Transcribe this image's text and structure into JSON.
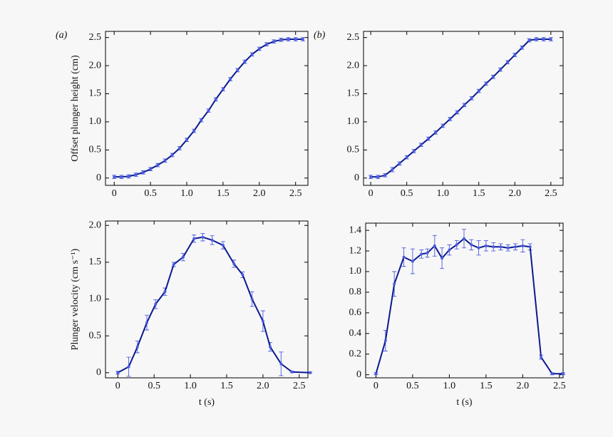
{
  "chart_data": [
    {
      "type": "line",
      "panel_label": "(a)",
      "ylabel": "Offset plunger height (cm)",
      "xlim": [
        -0.12,
        2.67
      ],
      "ylim": [
        -0.13,
        2.61
      ],
      "xticks": [
        0,
        0.5,
        {
          "value": 1,
          "label": "1.0"
        },
        1.5,
        {
          "value": 2,
          "label": "2.0"
        },
        2.5
      ],
      "yticks": [
        0,
        0.5,
        {
          "value": 1,
          "label": "1.0"
        },
        1.5,
        {
          "value": 2,
          "label": "2.0"
        },
        2.5
      ],
      "series": [
        {
          "color": "#0b1a8f",
          "error_color": "#4a5be0",
          "x": [
            0,
            0.1,
            0.2,
            0.3,
            0.4,
            0.5,
            0.6,
            0.7,
            0.8,
            0.9,
            1.0,
            1.1,
            1.2,
            1.3,
            1.4,
            1.5,
            1.6,
            1.7,
            1.8,
            1.9,
            2.0,
            2.1,
            2.2,
            2.3,
            2.4,
            2.5,
            2.6
          ],
          "values": [
            0.02,
            0.02,
            0.03,
            0.06,
            0.1,
            0.16,
            0.23,
            0.31,
            0.41,
            0.53,
            0.68,
            0.84,
            1.03,
            1.2,
            1.4,
            1.58,
            1.76,
            1.92,
            2.07,
            2.2,
            2.3,
            2.38,
            2.43,
            2.46,
            2.47,
            2.47,
            2.47
          ],
          "errors": [
            0.03,
            0.03,
            0.03,
            0.03,
            0.03,
            0.03,
            0.03,
            0.03,
            0.03,
            0.03,
            0.03,
            0.03,
            0.03,
            0.03,
            0.03,
            0.03,
            0.03,
            0.03,
            0.03,
            0.03,
            0.03,
            0.03,
            0.03,
            0.03,
            0.03,
            0.03,
            0.03
          ]
        }
      ]
    },
    {
      "type": "line",
      "panel_label": "(b)",
      "xlim": [
        -0.1,
        2.67
      ],
      "ylim": [
        -0.13,
        2.61
      ],
      "xticks": [
        0,
        0.5,
        {
          "value": 1,
          "label": "1.0"
        },
        1.5,
        {
          "value": 2,
          "label": "2.0"
        },
        2.5
      ],
      "yticks": [
        0,
        0.5,
        {
          "value": 1,
          "label": "1.0"
        },
        1.5,
        {
          "value": 2,
          "label": "2.0"
        },
        2.5
      ],
      "series": [
        {
          "color": "#0b1a8f",
          "error_color": "#4a5be0",
          "x": [
            0,
            0.1,
            0.2,
            0.3,
            0.4,
            0.5,
            0.6,
            0.7,
            0.8,
            0.9,
            1.0,
            1.1,
            1.2,
            1.3,
            1.4,
            1.5,
            1.6,
            1.7,
            1.8,
            1.9,
            2.0,
            2.1,
            2.2,
            2.3,
            2.4,
            2.5
          ],
          "values": [
            0.02,
            0.02,
            0.05,
            0.15,
            0.26,
            0.37,
            0.48,
            0.59,
            0.7,
            0.81,
            0.93,
            1.05,
            1.17,
            1.3,
            1.42,
            1.55,
            1.68,
            1.8,
            1.93,
            2.06,
            2.19,
            2.32,
            2.45,
            2.47,
            2.47,
            2.47
          ],
          "errors": [
            0.03,
            0.03,
            0.03,
            0.04,
            0.03,
            0.03,
            0.03,
            0.03,
            0.03,
            0.03,
            0.03,
            0.03,
            0.03,
            0.03,
            0.03,
            0.03,
            0.03,
            0.03,
            0.03,
            0.03,
            0.03,
            0.03,
            0.03,
            0.03,
            0.03,
            0.03
          ]
        }
      ]
    },
    {
      "type": "line",
      "ylabel": "Plunger velocity (cm s⁻¹)",
      "xlabel": "t (s)",
      "xlim": [
        -0.17,
        2.62
      ],
      "ylim": [
        -0.07,
        2.06
      ],
      "xticks": [
        0,
        0.5,
        {
          "value": 1,
          "label": "1.0"
        },
        1.5,
        {
          "value": 2,
          "label": "2.0"
        },
        2.5
      ],
      "yticks": [
        0,
        0.5,
        {
          "value": 1,
          "label": "1.0"
        },
        1.5,
        {
          "value": 2,
          "label": "2.0"
        }
      ],
      "series": [
        {
          "color": "#0b1a8f",
          "error_color": "#4a5be0",
          "x": [
            0,
            0.15,
            0.27,
            0.4,
            0.52,
            0.65,
            0.77,
            0.9,
            1.05,
            1.17,
            1.3,
            1.45,
            1.6,
            1.72,
            1.85,
            2.0,
            2.1,
            2.25,
            2.4,
            2.65
          ],
          "values": [
            0.0,
            0.08,
            0.35,
            0.68,
            0.93,
            1.1,
            1.47,
            1.57,
            1.82,
            1.84,
            1.8,
            1.73,
            1.48,
            1.33,
            1.0,
            0.7,
            0.35,
            0.12,
            0.01,
            0.0
          ],
          "errors": [
            0.02,
            0.13,
            0.08,
            0.1,
            0.06,
            0.05,
            0.03,
            0.05,
            0.05,
            0.05,
            0.06,
            0.05,
            0.05,
            0.04,
            0.1,
            0.14,
            0.06,
            0.16,
            0.01,
            0.01
          ]
        }
      ]
    },
    {
      "type": "line",
      "xlabel": "t (s)",
      "xlim": [
        -0.14,
        2.55
      ],
      "ylim": [
        -0.03,
        1.47
      ],
      "xticks": [
        0,
        0.5,
        {
          "value": 1,
          "label": "1.0"
        },
        1.5,
        {
          "value": 2,
          "label": "2.0"
        },
        2.5
      ],
      "yticks": [
        0,
        0.2,
        0.4,
        0.6,
        0.8,
        {
          "value": 1,
          "label": "1.0"
        },
        1.2,
        1.4
      ],
      "series": [
        {
          "color": "#0b1a8f",
          "error_color": "#4a5be0",
          "x": [
            0,
            0.13,
            0.25,
            0.38,
            0.5,
            0.62,
            0.7,
            0.8,
            0.9,
            1.0,
            1.1,
            1.2,
            1.3,
            1.4,
            1.5,
            1.6,
            1.7,
            1.8,
            1.9,
            2.0,
            2.1,
            2.25,
            2.4,
            2.55
          ],
          "values": [
            0.01,
            0.33,
            0.88,
            1.14,
            1.1,
            1.17,
            1.18,
            1.25,
            1.13,
            1.21,
            1.26,
            1.32,
            1.26,
            1.23,
            1.25,
            1.24,
            1.24,
            1.23,
            1.24,
            1.25,
            1.24,
            0.17,
            0.01,
            0.01
          ],
          "errors": [
            0.01,
            0.1,
            0.12,
            0.09,
            0.12,
            0.04,
            0.04,
            0.1,
            0.1,
            0.05,
            0.04,
            0.09,
            0.05,
            0.07,
            0.05,
            0.04,
            0.03,
            0.03,
            0.03,
            0.06,
            0.03,
            0.02,
            0.01,
            0.01
          ]
        }
      ]
    }
  ]
}
